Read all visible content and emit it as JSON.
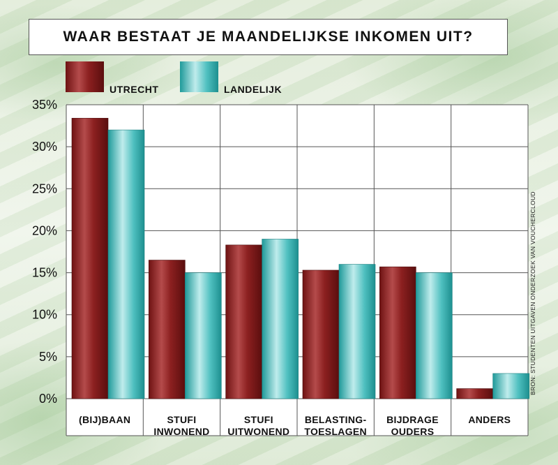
{
  "colors": {
    "utrecht": "#8e1f1f",
    "landelijk": "#3fb4b4"
  },
  "source_note": "BRON: STUDENTEN UITGAVEN ONDERZOEK VAN VOUCHERCLOUD",
  "chart_data": {
    "type": "bar",
    "title": "WAAR BESTAAT JE MAANDELIJKSE INKOMEN UIT?",
    "categories": [
      [
        "(BIJ)BAAN"
      ],
      [
        "STUFI",
        "INWONEND"
      ],
      [
        "STUFI",
        "UITWONEND"
      ],
      [
        "BELASTING-",
        "TOESLAGEN"
      ],
      [
        "BIJDRAGE",
        "OUDERS"
      ],
      [
        "ANDERS"
      ]
    ],
    "series": [
      {
        "name": "UTRECHT",
        "values": [
          33.4,
          16.5,
          18.3,
          15.3,
          15.7,
          1.2
        ]
      },
      {
        "name": "LANDELIJK",
        "values": [
          32.0,
          15.0,
          19.0,
          16.0,
          15.0,
          3.0
        ]
      }
    ],
    "ylim": [
      0,
      35
    ],
    "yticks": [
      "0%",
      "5%",
      "10%",
      "15%",
      "20%",
      "25%",
      "30%",
      "35%"
    ],
    "grid": true,
    "legend_position": "top-left"
  }
}
